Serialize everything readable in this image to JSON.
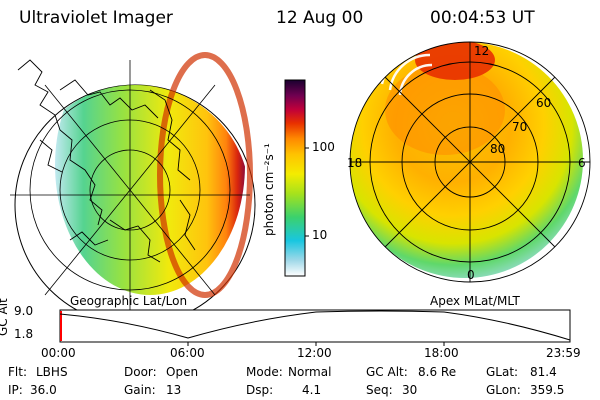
{
  "header": {
    "instrument": "Ultraviolet Imager",
    "date": "12 Aug 00",
    "time": "00:04:53 UT"
  },
  "panels": {
    "left_label": "Geographic Lat/Lon",
    "right_label": "Apex MLat/MLT"
  },
  "colorbar": {
    "unit_label": "photon cm⁻²s⁻¹",
    "ticks": [
      "100",
      "10"
    ],
    "scale": "log",
    "colors": [
      "#ffffff",
      "#9fd8e8",
      "#19c6e0",
      "#3bd16d",
      "#a6e21c",
      "#f4ec00",
      "#ffc300",
      "#ff8a00",
      "#e83000",
      "#c0003a",
      "#700050",
      "#1a0030"
    ]
  },
  "polar_grid": {
    "mlt_labels": [
      "12",
      "18",
      "6",
      "0"
    ],
    "mlat_labels": [
      "60",
      "70",
      "80"
    ]
  },
  "altitude_plot": {
    "axis_label": "GC Alt",
    "y_ticks": [
      "9.0",
      "1.8"
    ],
    "x_ticks": [
      "00:00",
      "06:00",
      "12:00",
      "18:00",
      "23:59"
    ]
  },
  "info": {
    "rows": [
      [
        {
          "key": "Flt:",
          "val": "LBHS"
        },
        {
          "key": "Door:",
          "val": "Open"
        },
        {
          "key": "Mode:",
          "val": "Normal"
        },
        {
          "key": "GC Alt:",
          "val": "8.6 Re"
        },
        {
          "key": "GLat:",
          "val": "81.4"
        }
      ],
      [
        {
          "key": "IP:",
          "val": "36.0"
        },
        {
          "key": "Gain:",
          "val": "13"
        },
        {
          "key": "Dsp:",
          "val": "4.1"
        },
        {
          "key": "Seq:",
          "val": "30"
        },
        {
          "key": "GLon:",
          "val": "359.5"
        }
      ]
    ]
  }
}
